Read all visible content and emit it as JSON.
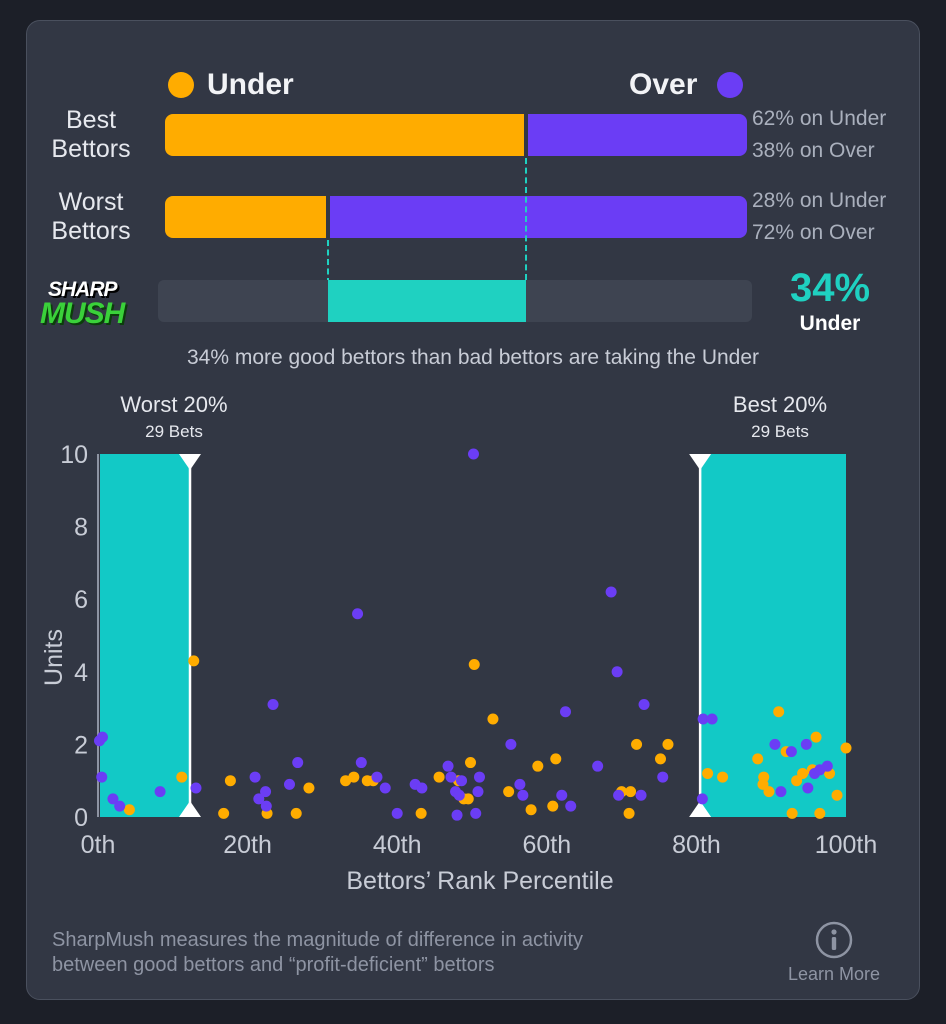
{
  "legend": {
    "under_label": "Under",
    "over_label": "Over",
    "under_color": "#ffac00",
    "over_color": "#6b3df5",
    "sharp_color": "#1fd1c1"
  },
  "rows": [
    {
      "label_line1": "Best",
      "label_line2": "Bettors",
      "under_pct": 62,
      "over_pct": 38,
      "under_text": "62% on Under",
      "over_text": "38% on Over"
    },
    {
      "label_line1": "Worst",
      "label_line2": "Bettors",
      "under_pct": 28,
      "over_pct": 72,
      "under_text": "28% on Under",
      "over_text": "72% on Over"
    }
  ],
  "logo": {
    "line1": "SHARP",
    "line2": "MUSH"
  },
  "sharpmush": {
    "value_text": "34%",
    "side_text": "Under",
    "caption": "34% more good bettors than bad bettors are taking the Under"
  },
  "chart_data": {
    "type": "scatter",
    "xlabel": "Bettors’ Rank Percentile",
    "ylabel": "Units",
    "xlim": [
      0,
      100
    ],
    "ylim": [
      0,
      10
    ],
    "xticks": [
      "0th",
      "20th",
      "40th",
      "60th",
      "80th",
      "100th"
    ],
    "yticks": [
      "0",
      "2",
      "4",
      "6",
      "8",
      "10"
    ],
    "grid": false,
    "worst_band": {
      "title": "Worst 20%",
      "subtitle": "29 Bets",
      "x_end": 12.3
    },
    "best_band": {
      "title": "Best 20%",
      "subtitle": "29 Bets",
      "x_start": 80.5
    },
    "series": [
      {
        "name": "Under",
        "color": "#ffac00",
        "points": [
          [
            11.2,
            1.1
          ],
          [
            12.8,
            4.3
          ],
          [
            4.2,
            0.2
          ],
          [
            16.8,
            0.1
          ],
          [
            17.7,
            1.0
          ],
          [
            22.6,
            0.1
          ],
          [
            26.5,
            0.1
          ],
          [
            28.2,
            0.8
          ],
          [
            33.1,
            1.0
          ],
          [
            34.2,
            1.1
          ],
          [
            36.0,
            1.0
          ],
          [
            36.8,
            1.0
          ],
          [
            43.2,
            0.1
          ],
          [
            45.6,
            1.1
          ],
          [
            48.2,
            1.0
          ],
          [
            48.9,
            0.5
          ],
          [
            49.8,
            1.5
          ],
          [
            49.5,
            0.5
          ],
          [
            50.3,
            4.2
          ],
          [
            52.8,
            2.7
          ],
          [
            54.9,
            0.7
          ],
          [
            57.9,
            0.2
          ],
          [
            58.8,
            1.4
          ],
          [
            60.8,
            0.3
          ],
          [
            61.2,
            1.6
          ],
          [
            70.0,
            0.7
          ],
          [
            71.0,
            0.1
          ],
          [
            71.2,
            0.7
          ],
          [
            72.0,
            2.0
          ],
          [
            75.2,
            1.6
          ],
          [
            76.2,
            2.0
          ],
          [
            81.5,
            1.2
          ],
          [
            83.5,
            1.1
          ],
          [
            88.2,
            1.6
          ],
          [
            88.9,
            0.9
          ],
          [
            89.0,
            1.1
          ],
          [
            89.7,
            0.7
          ],
          [
            91.0,
            2.9
          ],
          [
            92.0,
            1.8
          ],
          [
            92.8,
            0.1
          ],
          [
            93.4,
            1.0
          ],
          [
            94.2,
            1.2
          ],
          [
            95.5,
            1.3
          ],
          [
            96.0,
            2.2
          ],
          [
            96.5,
            0.1
          ],
          [
            97.8,
            1.2
          ],
          [
            98.8,
            0.6
          ],
          [
            100.0,
            1.9
          ]
        ]
      },
      {
        "name": "Over",
        "color": "#6b3df5",
        "points": [
          [
            0.2,
            2.1
          ],
          [
            0.6,
            2.2
          ],
          [
            0.5,
            1.1
          ],
          [
            2.0,
            0.5
          ],
          [
            2.9,
            0.3
          ],
          [
            8.3,
            0.7
          ],
          [
            13.1,
            0.8
          ],
          [
            21.0,
            1.1
          ],
          [
            21.5,
            0.5
          ],
          [
            22.4,
            0.7
          ],
          [
            22.5,
            0.3
          ],
          [
            23.4,
            3.1
          ],
          [
            25.6,
            0.9
          ],
          [
            26.7,
            1.5
          ],
          [
            34.7,
            5.6
          ],
          [
            35.2,
            1.5
          ],
          [
            37.3,
            1.1
          ],
          [
            38.4,
            0.8
          ],
          [
            40.0,
            0.1
          ],
          [
            42.4,
            0.9
          ],
          [
            43.3,
            0.8
          ],
          [
            46.8,
            1.4
          ],
          [
            47.2,
            1.1
          ],
          [
            47.8,
            0.7
          ],
          [
            48.3,
            0.6
          ],
          [
            48.6,
            1.0
          ],
          [
            50.2,
            10.0
          ],
          [
            50.8,
            0.7
          ],
          [
            51.0,
            1.1
          ],
          [
            50.5,
            0.1
          ],
          [
            48.0,
            0.05
          ],
          [
            55.2,
            2.0
          ],
          [
            56.4,
            0.9
          ],
          [
            56.8,
            0.6
          ],
          [
            62.5,
            2.9
          ],
          [
            62.0,
            0.6
          ],
          [
            63.2,
            0.3
          ],
          [
            66.8,
            1.4
          ],
          [
            68.6,
            6.2
          ],
          [
            69.4,
            4.0
          ],
          [
            69.6,
            0.6
          ],
          [
            72.6,
            0.6
          ],
          [
            73.0,
            3.1
          ],
          [
            75.5,
            1.1
          ],
          [
            80.8,
            0.5
          ],
          [
            80.9,
            2.7
          ],
          [
            82.1,
            2.7
          ],
          [
            90.5,
            2.0
          ],
          [
            91.3,
            0.7
          ],
          [
            92.7,
            1.8
          ],
          [
            94.7,
            2.0
          ],
          [
            94.9,
            0.8
          ],
          [
            95.8,
            1.2
          ],
          [
            96.5,
            1.3
          ],
          [
            97.5,
            1.4
          ]
        ]
      }
    ]
  },
  "footer": {
    "line1": "SharpMush measures the magnitude of difference in activity",
    "line2": "between good bettors and “profit-deficient” bettors",
    "learn_more": "Learn More",
    "info_icon": "info-icon"
  }
}
